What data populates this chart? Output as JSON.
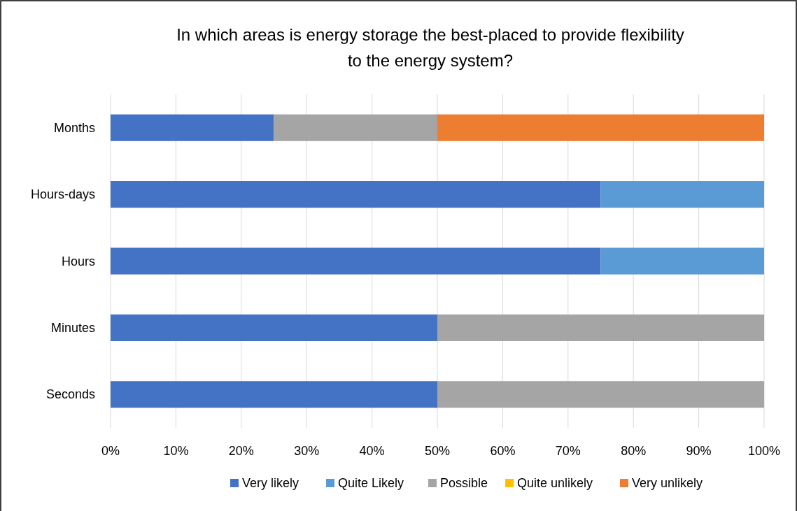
{
  "chart_data": {
    "type": "bar",
    "orientation": "horizontal",
    "stacked": true,
    "title": "In which areas is energy storage the best-placed to provide flexibility to the energy system?",
    "categories": [
      "Months",
      "Hours-days",
      "Hours",
      "Minutes",
      "Seconds"
    ],
    "series": [
      {
        "name": "Very likely",
        "color": "#4472c4",
        "values": [
          25,
          75,
          75,
          50,
          50
        ]
      },
      {
        "name": "Quite Likely",
        "color": "#5b9bd5",
        "values": [
          0,
          25,
          25,
          0,
          0
        ]
      },
      {
        "name": "Possible",
        "color": "#a5a5a5",
        "values": [
          25,
          0,
          0,
          50,
          50
        ]
      },
      {
        "name": "Quite unlikely",
        "color": "#ffc000",
        "values": [
          0,
          0,
          0,
          0,
          0
        ]
      },
      {
        "name": "Very unlikely",
        "color": "#ed7d31",
        "values": [
          50,
          0,
          0,
          0,
          0
        ]
      }
    ],
    "xlim": [
      0,
      100
    ],
    "xticks": [
      {
        "value": 0,
        "label": "0%"
      },
      {
        "value": 10,
        "label": "10%"
      },
      {
        "value": 20,
        "label": "20%"
      },
      {
        "value": 30,
        "label": "30%"
      },
      {
        "value": 40,
        "label": "40%"
      },
      {
        "value": 50,
        "label": "50%"
      },
      {
        "value": 60,
        "label": "60%"
      },
      {
        "value": 70,
        "label": "70%"
      },
      {
        "value": 80,
        "label": "80%"
      },
      {
        "value": 90,
        "label": "90%"
      },
      {
        "value": 100,
        "label": "100%"
      }
    ],
    "grid": "x",
    "legend": "bottom"
  }
}
